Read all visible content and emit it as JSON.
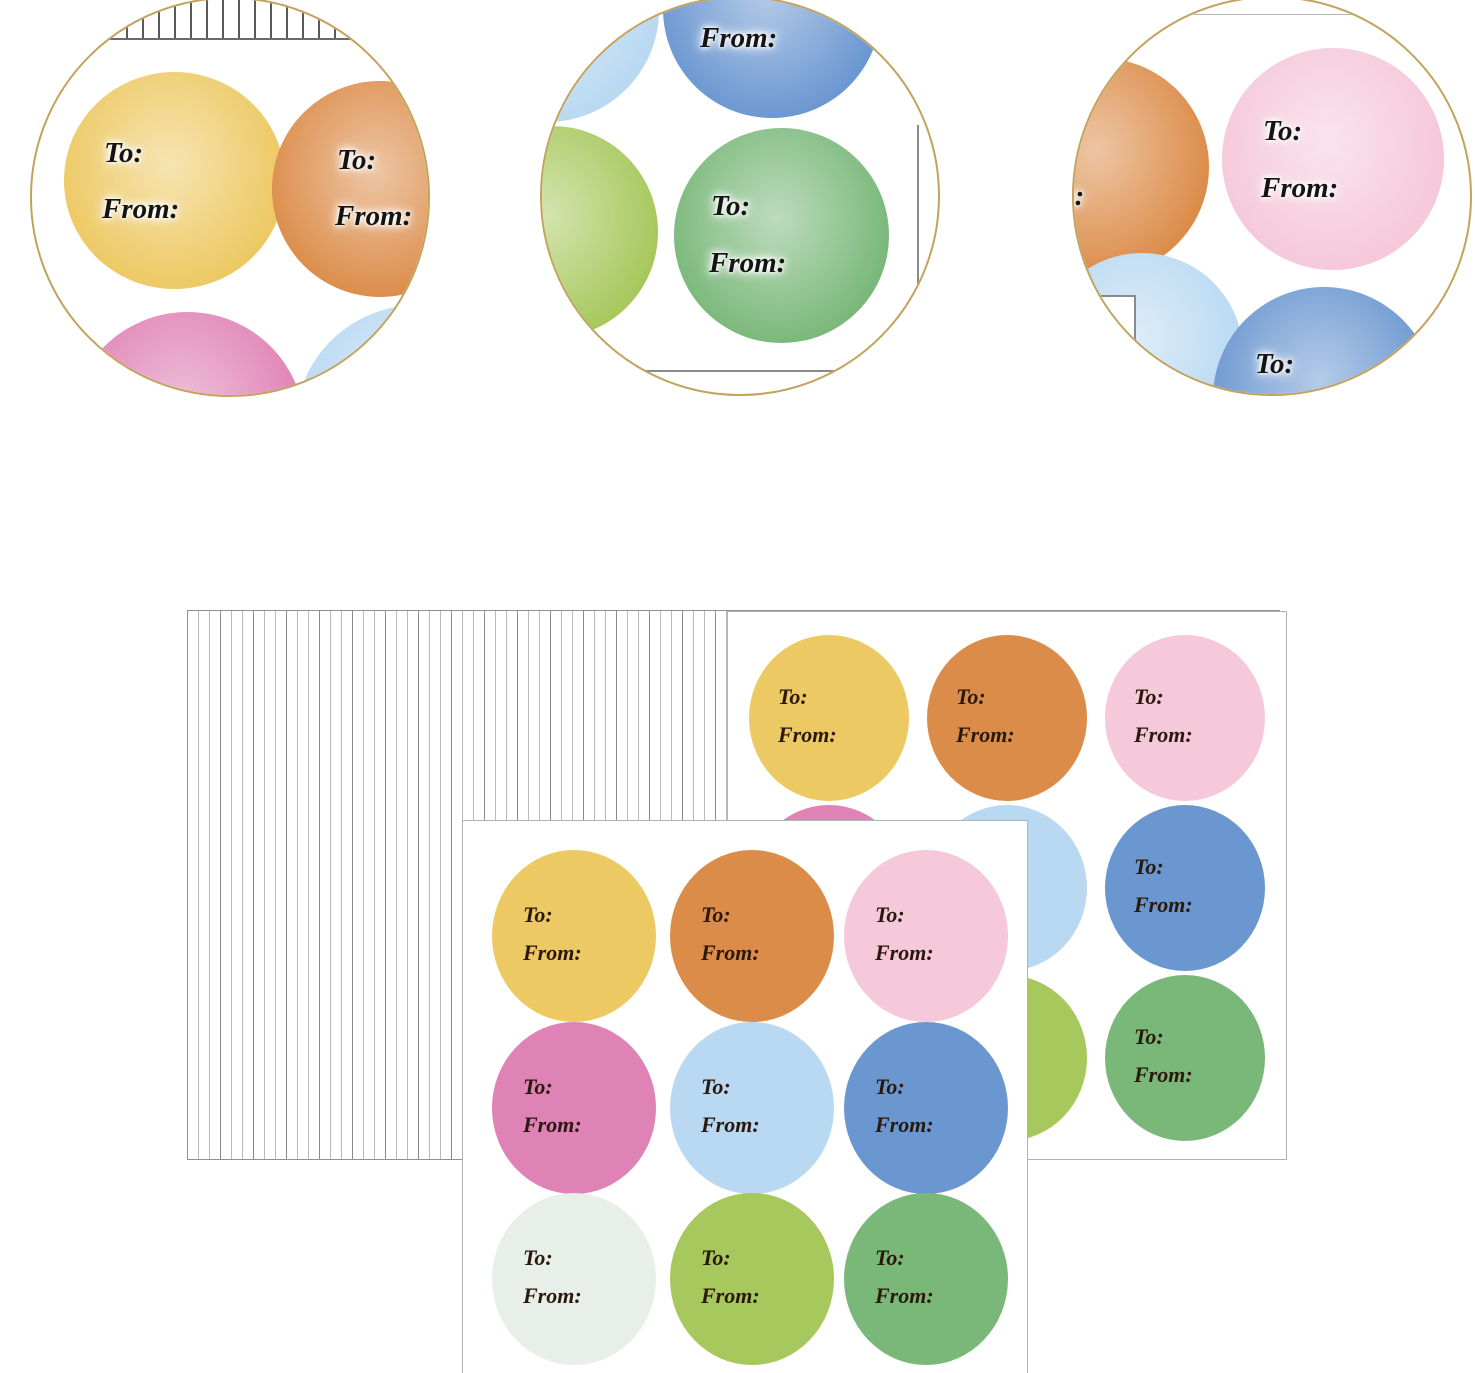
{
  "product": {
    "description": "Gift tag sticker sheets with round To/From labels and three zoom detail circles"
  },
  "labels": {
    "to": "To:",
    "from": "From:"
  },
  "colors": {
    "yellow": "#EDC963",
    "orange": "#DC8C49",
    "pink": "#F5C8DA",
    "magenta": "#DF82B5",
    "lightblue": "#B9D9F2",
    "blue": "#6B97D1",
    "lightgreen": "#A7C85D",
    "green": "#7AB87A",
    "palegreen": "#E8EFE8",
    "magnifier_ring": "#C2A35C",
    "sheet_edge": "#B3B3B3",
    "stripe_line": "#8A8A8A",
    "text": "#2B180C"
  },
  "sheets": {
    "stack": {
      "name": "stacked-sheets-edge-view"
    },
    "back": {
      "grid": [
        [
          "yellow",
          "orange",
          "pink"
        ],
        [
          "magenta",
          "lightblue",
          "blue"
        ],
        [
          "palegreen",
          "lightgreen",
          "green"
        ]
      ]
    },
    "front": {
      "grid": [
        [
          "yellow",
          "orange",
          "pink"
        ],
        [
          "magenta",
          "lightblue",
          "blue"
        ],
        [
          "palegreen",
          "lightgreen",
          "green"
        ]
      ]
    }
  },
  "magnifiers": [
    {
      "name": "zoom-detail-left",
      "shows": [
        "yellow",
        "orange",
        "magenta",
        "lightblue"
      ]
    },
    {
      "name": "zoom-detail-center",
      "shows": [
        "blue",
        "lightblue",
        "lightgreen",
        "green"
      ]
    },
    {
      "name": "zoom-detail-right",
      "shows": [
        "orange",
        "pink",
        "lightblue",
        "blue"
      ]
    }
  ]
}
